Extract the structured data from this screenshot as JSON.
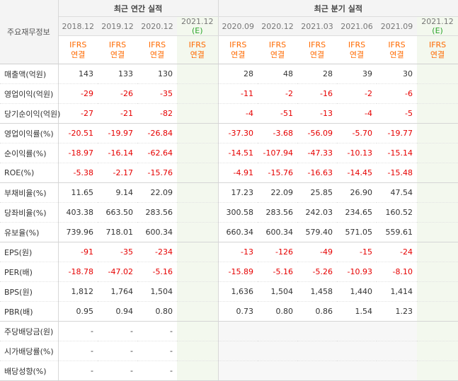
{
  "header": {
    "item_label": "주요재무정보",
    "annual_group": "최근 연간 실적",
    "quarter_group": "최근 분기 실적",
    "estimate_mark": "(E)",
    "annual_periods": [
      "2018.12",
      "2019.12",
      "2020.12",
      "2021.12"
    ],
    "quarter_periods": [
      "2020.09",
      "2020.12",
      "2021.03",
      "2021.06",
      "2021.09",
      "2021.12"
    ],
    "ifrs_line1": "IFRS",
    "ifrs_line2": "연결"
  },
  "rows": [
    {
      "label": "매출액(억원)",
      "annual": [
        "143",
        "133",
        "130",
        ""
      ],
      "quarter": [
        "28",
        "48",
        "28",
        "39",
        "30",
        ""
      ]
    },
    {
      "label": "영업이익(억원)",
      "annual": [
        "-29",
        "-26",
        "-35",
        ""
      ],
      "quarter": [
        "-11",
        "-2",
        "-16",
        "-2",
        "-6",
        ""
      ]
    },
    {
      "label": "당기순이익(억원)",
      "annual": [
        "-27",
        "-21",
        "-82",
        ""
      ],
      "quarter": [
        "-4",
        "-51",
        "-13",
        "-4",
        "-5",
        ""
      ]
    },
    {
      "label": "영업이익률(%)",
      "annual": [
        "-20.51",
        "-19.97",
        "-26.84",
        ""
      ],
      "quarter": [
        "-37.30",
        "-3.68",
        "-56.09",
        "-5.70",
        "-19.77",
        ""
      ]
    },
    {
      "label": "순이익률(%)",
      "annual": [
        "-18.97",
        "-16.14",
        "-62.64",
        ""
      ],
      "quarter": [
        "-14.51",
        "-107.94",
        "-47.33",
        "-10.13",
        "-15.14",
        ""
      ]
    },
    {
      "label": "ROE(%)",
      "annual": [
        "-5.38",
        "-2.17",
        "-15.76",
        ""
      ],
      "quarter": [
        "-4.91",
        "-15.76",
        "-16.63",
        "-14.45",
        "-15.48",
        ""
      ]
    },
    {
      "label": "부채비율(%)",
      "annual": [
        "11.65",
        "9.14",
        "22.09",
        ""
      ],
      "quarter": [
        "17.23",
        "22.09",
        "25.85",
        "26.90",
        "47.54",
        ""
      ]
    },
    {
      "label": "당좌비율(%)",
      "annual": [
        "403.38",
        "663.50",
        "283.56",
        ""
      ],
      "quarter": [
        "300.58",
        "283.56",
        "242.03",
        "234.65",
        "160.52",
        ""
      ]
    },
    {
      "label": "유보율(%)",
      "annual": [
        "739.96",
        "718.01",
        "600.34",
        ""
      ],
      "quarter": [
        "660.34",
        "600.34",
        "579.40",
        "571.05",
        "559.61",
        ""
      ]
    },
    {
      "label": "EPS(원)",
      "annual": [
        "-91",
        "-35",
        "-234",
        ""
      ],
      "quarter": [
        "-13",
        "-126",
        "-49",
        "-15",
        "-24",
        ""
      ]
    },
    {
      "label": "PER(배)",
      "annual": [
        "-18.78",
        "-47.02",
        "-5.16",
        ""
      ],
      "quarter": [
        "-15.89",
        "-5.16",
        "-5.26",
        "-10.93",
        "-8.10",
        ""
      ]
    },
    {
      "label": "BPS(원)",
      "annual": [
        "1,812",
        "1,764",
        "1,504",
        ""
      ],
      "quarter": [
        "1,636",
        "1,504",
        "1,458",
        "1,440",
        "1,414",
        ""
      ]
    },
    {
      "label": "PBR(배)",
      "annual": [
        "0.95",
        "0.94",
        "0.80",
        ""
      ],
      "quarter": [
        "0.73",
        "0.80",
        "0.86",
        "1.54",
        "1.23",
        ""
      ]
    },
    {
      "label": "주당배당금(원)",
      "annual": [
        "-",
        "-",
        "-",
        ""
      ],
      "quarter": [
        "",
        "",
        "",
        "",
        "",
        ""
      ]
    },
    {
      "label": "시가배당률(%)",
      "annual": [
        "-",
        "-",
        "-",
        ""
      ],
      "quarter": [
        "",
        "",
        "",
        "",
        "",
        ""
      ]
    },
    {
      "label": "배당성향(%)",
      "annual": [
        "-",
        "-",
        "-",
        ""
      ],
      "quarter": [
        "",
        "",
        "",
        "",
        "",
        ""
      ]
    }
  ],
  "colors": {
    "negative": "#e60000",
    "ifrs": "#ff6a00",
    "estimate_bg": "#f3f8ee",
    "estimate_mark": "#2aa52a"
  }
}
